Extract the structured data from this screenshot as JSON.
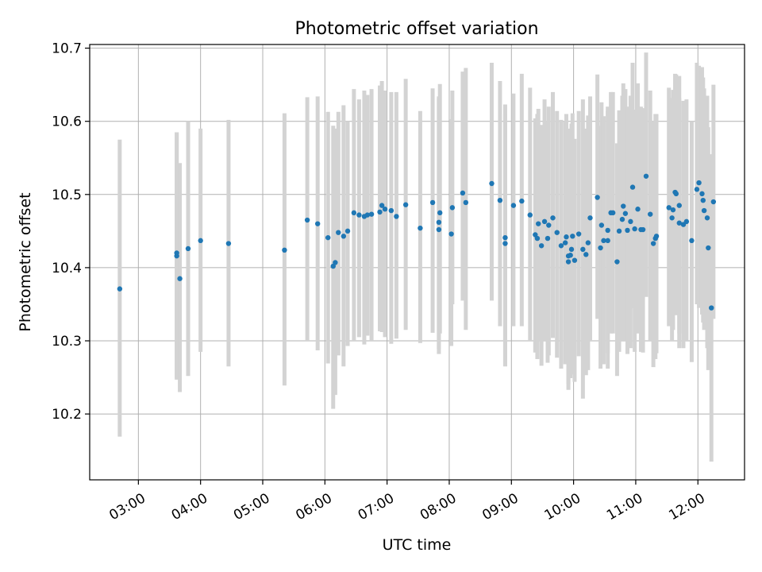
{
  "chart_data": {
    "type": "scatter",
    "title": "Photometric offset variation",
    "xlabel": "UTC time",
    "ylabel": "Photometric offset",
    "xlim": [
      "02:13",
      "12:45"
    ],
    "ylim": [
      10.11,
      10.705
    ],
    "grid": true,
    "x_ticks": [
      "03:00",
      "04:00",
      "05:00",
      "06:00",
      "07:00",
      "08:00",
      "09:00",
      "10:00",
      "11:00",
      "12:00"
    ],
    "y_ticks": [
      10.2,
      10.3,
      10.4,
      10.5,
      10.6,
      10.7
    ],
    "y_tick_labels": [
      "10.2",
      "10.3",
      "10.4",
      "10.5",
      "10.6",
      "10.7"
    ],
    "colors": {
      "points": "#1f77b4",
      "errorbars": "#d3d3d3",
      "grid": "#b0b0b0"
    },
    "series": [
      {
        "x": [
          "02:42",
          "03:37",
          "03:37",
          "03:40",
          "03:48",
          "04:00",
          "04:27",
          "05:21",
          "05:43",
          "05:53",
          "06:03",
          "06:08",
          "06:10",
          "06:13",
          "06:18",
          "06:22",
          "06:28",
          "06:33",
          "06:38",
          "06:41",
          "06:45",
          "06:53",
          "06:55",
          "06:58",
          "07:04",
          "07:09",
          "07:18",
          "07:32",
          "07:44",
          "07:50",
          "07:50",
          "07:51",
          "08:02",
          "08:03",
          "08:13",
          "08:16",
          "08:41",
          "08:49",
          "08:54",
          "08:54",
          "09:02",
          "09:10",
          "09:18",
          "09:23",
          "09:25",
          "09:26",
          "09:29",
          "09:32",
          "09:35",
          "09:36",
          "09:40",
          "09:44",
          "09:48",
          "09:52",
          "09:53",
          "09:55",
          "09:55",
          "09:57",
          "09:58",
          "09:59",
          "10:01",
          "10:05",
          "10:09",
          "10:12",
          "10:14",
          "10:16",
          "10:23",
          "10:26",
          "10:27",
          "10:29",
          "10:33",
          "10:33",
          "10:36",
          "10:38",
          "10:42",
          "10:44",
          "10:47",
          "10:48",
          "10:50",
          "10:52",
          "10:55",
          "10:57",
          "10:59",
          "11:02",
          "11:05",
          "11:07",
          "11:10",
          "11:14",
          "11:17",
          "11:19",
          "11:20",
          "11:32",
          "11:35",
          "11:36",
          "11:38",
          "11:39",
          "11:42",
          "11:42",
          "11:46",
          "11:49",
          "11:54",
          "11:59",
          "12:01",
          "12:04",
          "12:05",
          "12:06",
          "12:09",
          "12:10",
          "12:13",
          "12:15"
        ],
        "y": [
          10.371,
          10.416,
          10.42,
          10.385,
          10.426,
          10.437,
          10.433,
          10.424,
          10.465,
          10.46,
          10.441,
          10.402,
          10.407,
          10.448,
          10.443,
          10.45,
          10.475,
          10.472,
          10.47,
          10.472,
          10.473,
          10.476,
          10.485,
          10.48,
          10.478,
          10.47,
          10.486,
          10.454,
          10.489,
          10.452,
          10.462,
          10.475,
          10.446,
          10.482,
          10.502,
          10.489,
          10.515,
          10.492,
          10.441,
          10.433,
          10.485,
          10.491,
          10.472,
          10.445,
          10.44,
          10.46,
          10.43,
          10.463,
          10.44,
          10.458,
          10.468,
          10.448,
          10.43,
          10.434,
          10.442,
          10.408,
          10.416,
          10.417,
          10.425,
          10.443,
          10.41,
          10.446,
          10.425,
          10.418,
          10.434,
          10.468,
          10.496,
          10.427,
          10.458,
          10.437,
          10.451,
          10.437,
          10.475,
          10.475,
          10.408,
          10.45,
          10.466,
          10.484,
          10.474,
          10.451,
          10.463,
          10.51,
          10.453,
          10.48,
          10.452,
          10.452,
          10.525,
          10.473,
          10.433,
          10.44,
          10.443,
          10.482,
          10.468,
          10.479,
          10.503,
          10.501,
          10.461,
          10.485,
          10.459,
          10.463,
          10.437,
          10.507,
          10.516,
          10.501,
          10.492,
          10.478,
          10.468,
          10.427,
          10.345,
          10.49
        ],
        "err_low": [
          10.169,
          10.249,
          10.247,
          10.23,
          10.252,
          10.285,
          10.265,
          10.239,
          10.3,
          10.287,
          10.269,
          10.207,
          10.226,
          10.28,
          10.265,
          10.293,
          10.3,
          10.305,
          10.295,
          10.307,
          10.301,
          10.313,
          10.312,
          10.305,
          10.296,
          10.303,
          10.315,
          10.297,
          10.311,
          10.282,
          10.289,
          10.31,
          10.293,
          10.35,
          10.355,
          10.315,
          10.355,
          10.32,
          10.265,
          10.266,
          10.32,
          10.32,
          10.299,
          10.284,
          10.275,
          10.3,
          10.266,
          10.3,
          10.27,
          10.28,
          10.304,
          10.277,
          10.262,
          10.268,
          10.27,
          10.233,
          10.241,
          10.249,
          10.254,
          10.278,
          10.244,
          10.279,
          10.221,
          10.253,
          10.26,
          10.3,
          10.33,
          10.262,
          10.29,
          10.268,
          10.283,
          10.262,
          10.31,
          10.31,
          10.252,
          10.285,
          10.3,
          10.32,
          10.3,
          10.282,
          10.29,
          10.345,
          10.285,
          10.31,
          10.285,
          10.284,
          10.36,
          10.301,
          10.264,
          10.275,
          10.283,
          10.32,
          10.3,
          10.315,
          10.34,
          10.335,
          10.29,
          10.31,
          10.29,
          10.3,
          10.271,
          10.35,
          10.345,
          10.336,
          10.325,
          10.315,
          10.29,
          10.26,
          10.135,
          10.33
        ],
        "err_high": [
          10.575,
          10.585,
          10.585,
          10.543,
          10.6,
          10.59,
          10.602,
          10.611,
          10.633,
          10.634,
          10.613,
          10.594,
          10.59,
          10.613,
          10.622,
          10.6,
          10.644,
          10.63,
          10.642,
          10.636,
          10.644,
          10.649,
          10.655,
          10.642,
          10.64,
          10.64,
          10.658,
          10.614,
          10.645,
          10.631,
          10.634,
          10.651,
          10.603,
          10.642,
          10.668,
          10.673,
          10.68,
          10.655,
          10.623,
          10.61,
          10.638,
          10.665,
          10.646,
          10.604,
          10.61,
          10.617,
          10.595,
          10.63,
          10.6,
          10.62,
          10.64,
          10.614,
          10.602,
          10.6,
          10.61,
          10.58,
          10.59,
          10.586,
          10.597,
          10.611,
          10.576,
          10.614,
          10.63,
          10.59,
          10.608,
          10.634,
          10.664,
          10.594,
          10.626,
          10.607,
          10.62,
          10.614,
          10.64,
          10.64,
          10.57,
          10.615,
          10.635,
          10.652,
          10.644,
          10.62,
          10.635,
          10.68,
          10.616,
          10.652,
          10.62,
          10.618,
          10.694,
          10.642,
          10.6,
          10.61,
          10.61,
          10.646,
          10.632,
          10.643,
          10.665,
          10.664,
          10.632,
          10.662,
          10.628,
          10.63,
          10.6,
          10.68,
          10.676,
          10.674,
          10.66,
          10.645,
          10.635,
          10.592,
          10.555,
          10.65
        ]
      }
    ]
  }
}
